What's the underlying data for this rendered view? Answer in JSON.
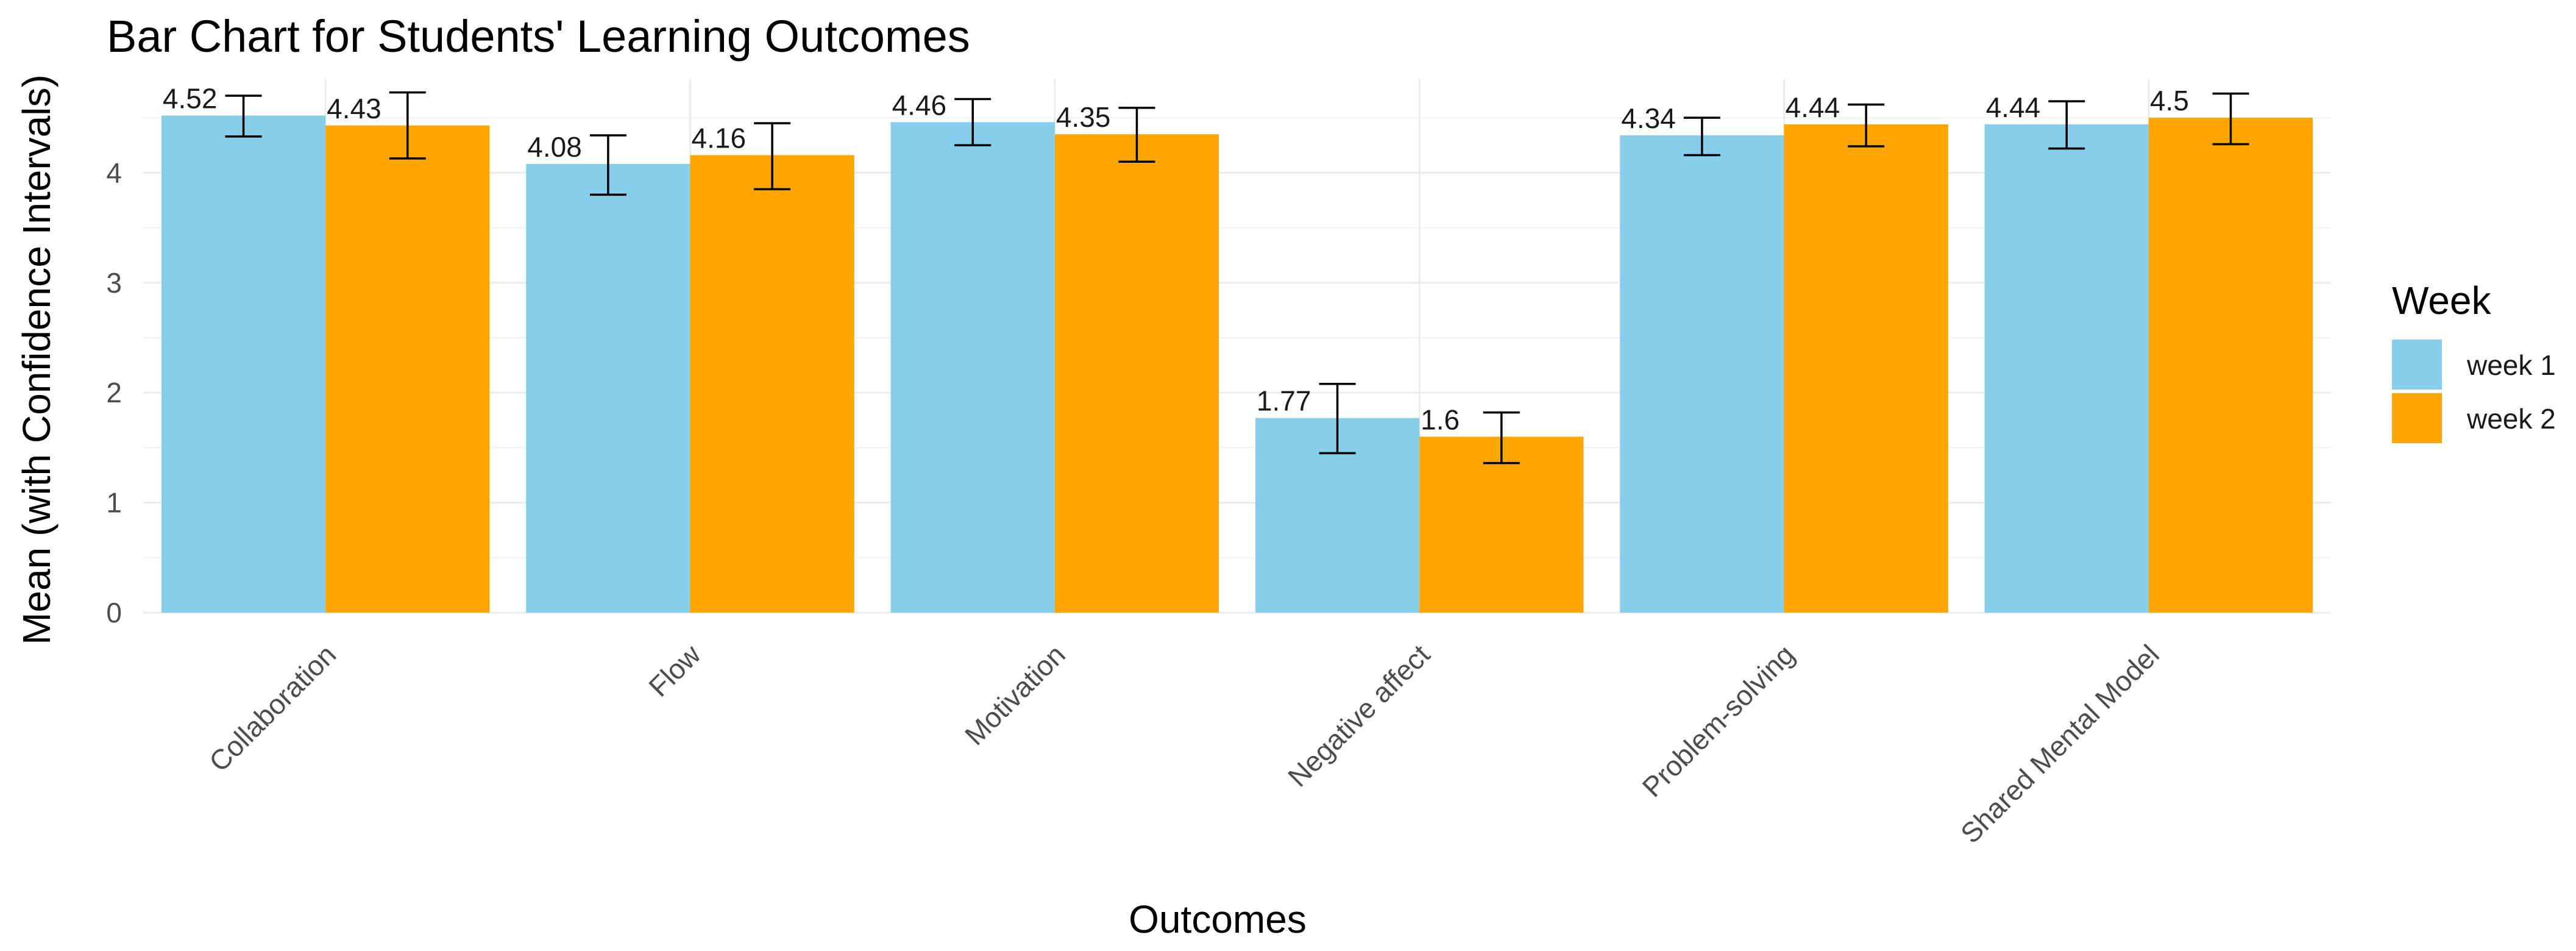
{
  "chart_data": {
    "type": "bar",
    "title": "Bar Chart for Students' Learning Outcomes",
    "xlabel": "Outcomes",
    "ylabel": "Mean (with Confidence Intervals)",
    "categories": [
      "Collaboration",
      "Flow",
      "Motivation",
      "Negative affect",
      "Problem-solving",
      "Shared Mental Model"
    ],
    "series": [
      {
        "name": "week 1",
        "color": "#87ceeb",
        "values": [
          4.52,
          4.08,
          4.46,
          1.77,
          4.34,
          4.44
        ],
        "ci_lower": [
          4.33,
          3.8,
          4.25,
          1.45,
          4.16,
          4.22
        ],
        "ci_upper": [
          4.7,
          4.34,
          4.67,
          2.08,
          4.5,
          4.65
        ]
      },
      {
        "name": "week 2",
        "color": "#ffa500",
        "values": [
          4.43,
          4.16,
          4.35,
          1.6,
          4.44,
          4.5
        ],
        "ci_lower": [
          4.13,
          3.85,
          4.1,
          1.36,
          4.24,
          4.26
        ],
        "ci_upper": [
          4.73,
          4.45,
          4.59,
          1.82,
          4.62,
          4.72
        ]
      }
    ],
    "data_labels": [
      [
        "4.52",
        "4.08",
        "4.46",
        "1.77",
        "4.34",
        "4.44"
      ],
      [
        "4.43",
        "4.16",
        "4.35",
        "1.6",
        "4.44",
        "4.5"
      ]
    ],
    "ylim": [
      0,
      4.85
    ],
    "yticks": [
      "0",
      "1",
      "2",
      "3",
      "4"
    ],
    "legend_title": "Week",
    "legend_position": "right",
    "grid": true
  }
}
